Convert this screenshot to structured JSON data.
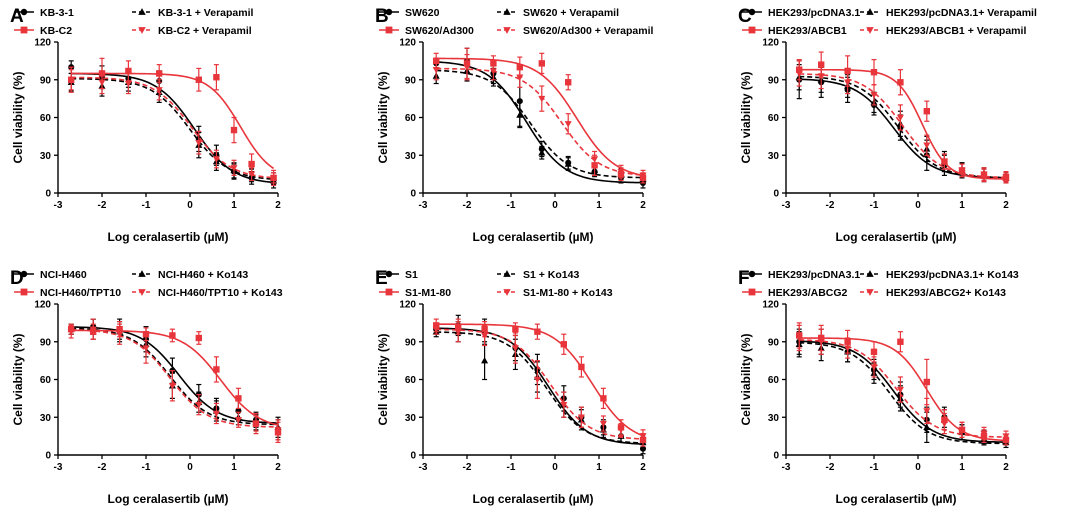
{
  "chart_data": [
    {
      "panel": "A",
      "type": "line",
      "xlabel": "Log ceralasertib (µM)",
      "ylabel": "Cell viability (%)",
      "xlim": [
        -3,
        2
      ],
      "ylim": [
        0,
        120
      ],
      "xticks": [
        -3,
        -2,
        -1,
        0,
        1,
        2
      ],
      "yticks": [
        0,
        30,
        60,
        90,
        120
      ],
      "x": [
        -2.7,
        -2.0,
        -1.4,
        -0.7,
        0.2,
        0.6,
        1.0,
        1.4,
        1.9
      ],
      "series": [
        {
          "name": "KB-3-1",
          "color": "#000000",
          "dash": false,
          "marker": "circle",
          "values": [
            100,
            92,
            91,
            89,
            43,
            30,
            17,
            12,
            8
          ],
          "errors": [
            5,
            9,
            7,
            8,
            10,
            8,
            6,
            5,
            4
          ],
          "top": 95,
          "bottom": 7,
          "logic50": 0.1,
          "hill": 1.0
        },
        {
          "name": "KB-3-1 + Verapamil",
          "color": "#000000",
          "dash": true,
          "marker": "triangle",
          "values": [
            88,
            85,
            88,
            80,
            38,
            25,
            18,
            14,
            12
          ],
          "errors": [
            7,
            8,
            7,
            8,
            10,
            7,
            6,
            5,
            4
          ],
          "top": 91,
          "bottom": 10,
          "logic50": 0.0,
          "hill": 1.0
        },
        {
          "name": "KB-C2",
          "color": "#e8353b",
          "dash": false,
          "marker": "square",
          "values": [
            90,
            95,
            97,
            95,
            90,
            92,
            50,
            23,
            12
          ],
          "errors": [
            10,
            12,
            8,
            7,
            9,
            10,
            10,
            8,
            6
          ],
          "top": 95,
          "bottom": 10,
          "logic50": 1.15,
          "hill": 1.2
        },
        {
          "name": "KB-C2 + Verapamil",
          "color": "#e8353b",
          "dash": true,
          "marker": "invtriangle",
          "values": [
            90,
            88,
            87,
            82,
            40,
            27,
            20,
            15,
            12
          ],
          "errors": [
            8,
            9,
            8,
            8,
            9,
            7,
            6,
            5,
            4
          ],
          "top": 92,
          "bottom": 11,
          "logic50": 0.05,
          "hill": 1.0
        }
      ]
    },
    {
      "panel": "B",
      "type": "line",
      "xlabel": "Log ceralasertib (µM)",
      "ylabel": "Cell viability (%)",
      "xlim": [
        -3,
        2
      ],
      "ylim": [
        0,
        120
      ],
      "xticks": [
        -3,
        -2,
        -1,
        0,
        1,
        2
      ],
      "yticks": [
        0,
        30,
        60,
        90,
        120
      ],
      "x": [
        -2.7,
        -2.0,
        -1.4,
        -0.8,
        -0.3,
        0.3,
        0.9,
        1.5,
        2.0
      ],
      "series": [
        {
          "name": "SW620",
          "color": "#000000",
          "dash": false,
          "marker": "circle",
          "values": [
            103,
            105,
            95,
            73,
            35,
            24,
            17,
            12,
            8
          ],
          "errors": [
            4,
            10,
            8,
            20,
            6,
            5,
            4,
            4,
            4
          ],
          "top": 105,
          "bottom": 8,
          "logic50": -0.65,
          "hill": 1.0
        },
        {
          "name": "SW620 + Verapamil",
          "color": "#000000",
          "dash": true,
          "marker": "triangle",
          "values": [
            93,
            97,
            92,
            62,
            32,
            23,
            18,
            15,
            11
          ],
          "errors": [
            6,
            8,
            7,
            10,
            5,
            5,
            4,
            4,
            4
          ],
          "top": 98,
          "bottom": 12,
          "logic50": -0.55,
          "hill": 1.0
        },
        {
          "name": "SW620/Ad300",
          "color": "#e8353b",
          "dash": false,
          "marker": "square",
          "values": [
            105,
            103,
            103,
            100,
            103,
            88,
            22,
            15,
            12
          ],
          "errors": [
            6,
            12,
            6,
            8,
            8,
            6,
            8,
            5,
            4
          ],
          "top": 107,
          "bottom": 11,
          "logic50": 0.5,
          "hill": 1.0
        },
        {
          "name": "SW620/Ad300 + Verapamil",
          "color": "#e8353b",
          "dash": true,
          "marker": "invtriangle",
          "values": [
            98,
            100,
            97,
            92,
            75,
            55,
            27,
            17,
            14
          ],
          "errors": [
            8,
            10,
            7,
            8,
            10,
            8,
            6,
            5,
            4
          ],
          "top": 99,
          "bottom": 13,
          "logic50": 0.15,
          "hill": 1.0
        }
      ]
    },
    {
      "panel": "C",
      "type": "line",
      "xlabel": "Log ceralasertib (µM)",
      "ylabel": "Cell viability (%)",
      "xlim": [
        -3,
        2
      ],
      "ylim": [
        0,
        120
      ],
      "xticks": [
        -3,
        -2,
        -1,
        0,
        1,
        2
      ],
      "yticks": [
        0,
        30,
        60,
        90,
        120
      ],
      "x": [
        -2.7,
        -2.2,
        -1.6,
        -1.0,
        -0.4,
        0.2,
        0.6,
        1.0,
        1.5,
        2.0
      ],
      "series": [
        {
          "name": "HEK293/pcDNA3.1",
          "color": "#000000",
          "dash": false,
          "marker": "circle",
          "values": [
            90,
            88,
            82,
            70,
            52,
            30,
            22,
            18,
            15,
            13
          ],
          "errors": [
            15,
            12,
            10,
            8,
            10,
            12,
            8,
            6,
            5,
            4
          ],
          "top": 91,
          "bottom": 12,
          "logic50": -0.55,
          "hill": 1.0
        },
        {
          "name": "HEK293/pcDNA3.1+ Verapamil",
          "color": "#000000",
          "dash": true,
          "marker": "triangle",
          "values": [
            92,
            90,
            85,
            72,
            55,
            35,
            25,
            18,
            14,
            12
          ],
          "errors": [
            10,
            10,
            9,
            8,
            10,
            10,
            8,
            6,
            5,
            4
          ],
          "top": 93,
          "bottom": 12,
          "logic50": -0.45,
          "hill": 1.0
        },
        {
          "name": "HEK293/ABCB1",
          "color": "#e8353b",
          "dash": false,
          "marker": "square",
          "values": [
            98,
            102,
            97,
            96,
            88,
            65,
            25,
            18,
            14,
            12
          ],
          "errors": [
            8,
            10,
            12,
            10,
            10,
            8,
            6,
            5,
            5,
            4
          ],
          "top": 98,
          "bottom": 11,
          "logic50": 0.1,
          "hill": 1.5
        },
        {
          "name": "HEK293/ABCB1 + Verapamil",
          "color": "#e8353b",
          "dash": true,
          "marker": "invtriangle",
          "values": [
            95,
            93,
            88,
            78,
            60,
            38,
            25,
            18,
            15,
            13
          ],
          "errors": [
            10,
            10,
            9,
            8,
            10,
            8,
            6,
            5,
            5,
            4
          ],
          "top": 95,
          "bottom": 12,
          "logic50": -0.35,
          "hill": 1.0
        }
      ]
    },
    {
      "panel": "D",
      "type": "line",
      "xlabel": "Log ceralasertib (µM)",
      "ylabel": "Cell viability (%)",
      "xlim": [
        -3,
        2
      ],
      "ylim": [
        0,
        120
      ],
      "xticks": [
        -3,
        -2,
        -1,
        0,
        1,
        2
      ],
      "yticks": [
        0,
        30,
        60,
        90,
        120
      ],
      "x": [
        -2.7,
        -2.2,
        -1.6,
        -1.0,
        -0.4,
        0.2,
        0.6,
        1.1,
        1.5,
        2.0
      ],
      "series": [
        {
          "name": "NCI-H460",
          "color": "#000000",
          "dash": false,
          "marker": "circle",
          "values": [
            100,
            102,
            100,
            92,
            67,
            48,
            37,
            35,
            28,
            20
          ],
          "errors": [
            4,
            6,
            8,
            10,
            10,
            8,
            8,
            8,
            6,
            8
          ],
          "top": 102,
          "bottom": 25,
          "logic50": -0.25,
          "hill": 1.0
        },
        {
          "name": "NCI-H460 + Ko143",
          "color": "#000000",
          "dash": true,
          "marker": "triangle",
          "values": [
            100,
            100,
            98,
            88,
            55,
            42,
            35,
            30,
            26,
            22
          ],
          "errors": [
            4,
            8,
            8,
            10,
            10,
            8,
            8,
            6,
            6,
            8
          ],
          "top": 101,
          "bottom": 24,
          "logic50": -0.45,
          "hill": 1.0
        },
        {
          "name": "NCI-H460/TPT10",
          "color": "#e8353b",
          "dash": false,
          "marker": "square",
          "values": [
            100,
            98,
            100,
            96,
            95,
            93,
            68,
            45,
            25,
            18
          ],
          "errors": [
            4,
            6,
            6,
            5,
            5,
            5,
            10,
            8,
            8,
            8
          ],
          "top": 99,
          "bottom": 20,
          "logic50": 0.7,
          "hill": 1.0
        },
        {
          "name": "NCI-H460/TPT10 + Ko143",
          "color": "#e8353b",
          "dash": true,
          "marker": "invtriangle",
          "values": [
            98,
            100,
            96,
            85,
            55,
            40,
            33,
            28,
            25,
            20
          ],
          "errors": [
            5,
            8,
            8,
            12,
            12,
            8,
            8,
            6,
            6,
            8
          ],
          "top": 100,
          "bottom": 22,
          "logic50": -0.45,
          "hill": 1.0
        }
      ]
    },
    {
      "panel": "E",
      "type": "line",
      "xlabel": "Log ceralasertib (µM)",
      "ylabel": "Cell viability (%)",
      "xlim": [
        -3,
        2
      ],
      "ylim": [
        0,
        120
      ],
      "xticks": [
        -3,
        -2,
        -1,
        0,
        1,
        2
      ],
      "yticks": [
        0,
        30,
        60,
        90,
        120
      ],
      "x": [
        -2.7,
        -2.2,
        -1.6,
        -0.9,
        -0.4,
        0.2,
        0.6,
        1.1,
        1.5,
        2.0
      ],
      "series": [
        {
          "name": "S1",
          "color": "#000000",
          "dash": false,
          "marker": "circle",
          "values": [
            100,
            103,
            98,
            85,
            68,
            45,
            30,
            22,
            15,
            5
          ],
          "errors": [
            4,
            8,
            10,
            10,
            12,
            10,
            8,
            6,
            5,
            4
          ],
          "top": 101,
          "bottom": 8,
          "logic50": -0.15,
          "hill": 1.0
        },
        {
          "name": "S1 + Ko143",
          "color": "#000000",
          "dash": true,
          "marker": "triangle",
          "values": [
            98,
            98,
            75,
            80,
            62,
            40,
            28,
            20,
            15,
            10
          ],
          "errors": [
            4,
            8,
            15,
            12,
            12,
            10,
            8,
            6,
            5,
            4
          ],
          "top": 98,
          "bottom": 9,
          "logic50": -0.2,
          "hill": 1.0
        },
        {
          "name": "S1-M1-80",
          "color": "#e8353b",
          "dash": false,
          "marker": "square",
          "values": [
            103,
            102,
            100,
            100,
            98,
            88,
            70,
            45,
            22,
            12
          ],
          "errors": [
            5,
            6,
            6,
            5,
            6,
            8,
            8,
            8,
            6,
            5
          ],
          "top": 104,
          "bottom": 9,
          "logic50": 0.85,
          "hill": 1.0
        },
        {
          "name": "S1-M1-80 + Ko143",
          "color": "#e8353b",
          "dash": true,
          "marker": "invtriangle",
          "values": [
            100,
            98,
            95,
            85,
            60,
            40,
            30,
            25,
            20,
            15
          ],
          "errors": [
            4,
            8,
            8,
            12,
            15,
            10,
            8,
            6,
            5,
            5
          ],
          "top": 100,
          "bottom": 12,
          "logic50": -0.1,
          "hill": 1.0
        }
      ]
    },
    {
      "panel": "F",
      "type": "line",
      "xlabel": "Log ceralasertib (µM)",
      "ylabel": "Cell viability (%)",
      "xlim": [
        -3,
        2
      ],
      "ylim": [
        0,
        120
      ],
      "xticks": [
        -3,
        -2,
        -1,
        0,
        1,
        2
      ],
      "yticks": [
        0,
        30,
        60,
        90,
        120
      ],
      "x": [
        -2.7,
        -2.2,
        -1.6,
        -1.0,
        -0.4,
        0.2,
        0.6,
        1.0,
        1.5,
        2.0
      ],
      "series": [
        {
          "name": "HEK293/pcDNA3.1",
          "color": "#000000",
          "dash": false,
          "marker": "circle",
          "values": [
            90,
            90,
            82,
            68,
            48,
            28,
            30,
            18,
            14,
            12
          ],
          "errors": [
            10,
            10,
            8,
            8,
            10,
            10,
            8,
            6,
            5,
            4
          ],
          "top": 91,
          "bottom": 10,
          "logic50": -0.55,
          "hill": 1.0
        },
        {
          "name": "HEK293/pcDNA3.1+ Ko143",
          "color": "#000000",
          "dash": true,
          "marker": "triangle",
          "values": [
            88,
            85,
            82,
            65,
            45,
            22,
            28,
            18,
            13,
            10
          ],
          "errors": [
            10,
            10,
            8,
            8,
            10,
            12,
            8,
            6,
            5,
            4
          ],
          "top": 90,
          "bottom": 9,
          "logic50": -0.65,
          "hill": 1.0
        },
        {
          "name": "HEK293/ABCG2",
          "color": "#e8353b",
          "dash": false,
          "marker": "square",
          "values": [
            95,
            93,
            90,
            82,
            90,
            58,
            28,
            20,
            15,
            12
          ],
          "errors": [
            10,
            10,
            9,
            8,
            8,
            18,
            8,
            6,
            5,
            4
          ],
          "top": 93,
          "bottom": 11,
          "logic50": 0.2,
          "hill": 1.2
        },
        {
          "name": "HEK293/ABCG2+ Ko143",
          "color": "#e8353b",
          "dash": true,
          "marker": "invtriangle",
          "values": [
            93,
            90,
            85,
            70,
            52,
            35,
            25,
            20,
            17,
            15
          ],
          "errors": [
            10,
            10,
            8,
            8,
            10,
            10,
            8,
            6,
            5,
            4
          ],
          "top": 92,
          "bottom": 14,
          "logic50": -0.5,
          "hill": 1.0
        }
      ]
    }
  ]
}
